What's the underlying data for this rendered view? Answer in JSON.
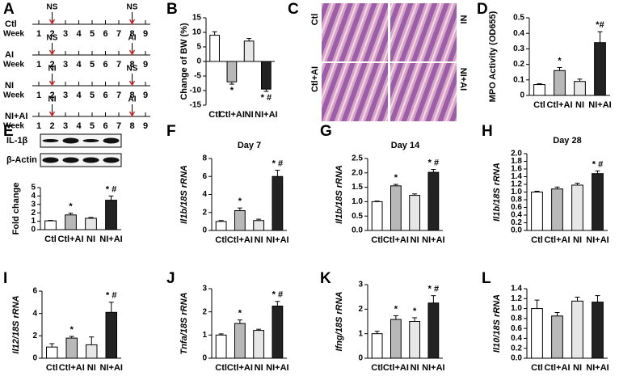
{
  "timeline": {
    "label": "A",
    "arrow_color": "#e02020",
    "rows": [
      {
        "group": "Ctl",
        "week_label": "Week",
        "weeks": [
          1,
          2,
          3,
          4,
          5,
          6,
          7,
          8,
          9
        ],
        "events": [
          {
            "text": "NS",
            "week": 2,
            "color": "#000000"
          },
          {
            "text": "NS",
            "week": 8,
            "color": "#000000"
          }
        ]
      },
      {
        "group": "AI",
        "week_label": "Week",
        "weeks": [
          1,
          2,
          3,
          4,
          5,
          6,
          7,
          8,
          9
        ],
        "events": [
          {
            "text": "NS",
            "week": 2,
            "color": "#000000"
          },
          {
            "text": "AI",
            "week": 8,
            "color": "#8e44ad"
          }
        ]
      },
      {
        "group": "NI",
        "week_label": "Week",
        "weeks": [
          1,
          2,
          3,
          4,
          5,
          6,
          7,
          8,
          9
        ],
        "events": [
          {
            "text": "NI",
            "week": 2,
            "color": "#1f4fd8"
          },
          {
            "text": "NS",
            "week": 8,
            "color": "#000000"
          }
        ]
      },
      {
        "group": "NI+AI",
        "week_label": "Week",
        "weeks": [
          1,
          2,
          3,
          4,
          5,
          6,
          7,
          8,
          9
        ],
        "events": [
          {
            "text": "NI",
            "week": 2,
            "color": "#1f4fd8"
          },
          {
            "text": "AI",
            "week": 8,
            "color": "#8e44ad"
          }
        ]
      }
    ]
  },
  "micrographs": {
    "label": "C",
    "tiles": [
      "Ctl",
      "NI",
      "Ctl+AI",
      "NI+AI"
    ]
  },
  "chart_data": [
    {
      "type": "bar",
      "label": "B",
      "y_label": "Change of BW (%)",
      "categories": [
        "Ctl",
        "Ctl+AI",
        "NI",
        "NI+AI"
      ],
      "values": [
        9,
        -7,
        7,
        -9.5
      ],
      "errors": [
        1.2,
        0.8,
        0.9,
        0.8
      ],
      "annotations": [
        null,
        "*",
        null,
        "* #"
      ],
      "colors": [
        "#ffffff",
        "#b8b8b8",
        "#e6e6e6",
        "#222222"
      ],
      "ylim": [
        -15,
        15
      ],
      "yticks": [
        -15,
        -10,
        -5,
        0,
        5,
        10,
        15
      ]
    },
    {
      "type": "bar",
      "label": "D",
      "y_label": "MPO Activity (OD655)",
      "categories": [
        "Ctl",
        "Ctl+AI",
        "NI",
        "NI+AI"
      ],
      "values": [
        0.07,
        0.16,
        0.09,
        0.34
      ],
      "errors": [
        0.005,
        0.02,
        0.015,
        0.07
      ],
      "annotations": [
        null,
        "*",
        null,
        "*#"
      ],
      "colors": [
        "#ffffff",
        "#b8b8b8",
        "#e6e6e6",
        "#222222"
      ],
      "ylim": [
        0,
        0.5
      ],
      "yticks": [
        0,
        0.1,
        0.2,
        0.3,
        0.4,
        0.5
      ]
    },
    {
      "type": "bar",
      "label": "E",
      "blot_labels": [
        "IL-1β",
        "β-Actin"
      ],
      "y_label": "Fold change",
      "categories": [
        "Ctl",
        "Ctl+AI",
        "NI",
        "NI+AI"
      ],
      "values": [
        1.05,
        1.75,
        1.35,
        3.5
      ],
      "errors": [
        0.05,
        0.2,
        0.1,
        0.5
      ],
      "annotations": [
        null,
        "*",
        null,
        "* #"
      ],
      "colors": [
        "#ffffff",
        "#b8b8b8",
        "#e6e6e6",
        "#222222"
      ],
      "ylim": [
        0,
        5
      ],
      "yticks": [
        0,
        1,
        2,
        3,
        4,
        5
      ]
    },
    {
      "type": "bar",
      "label": "F",
      "title": "Day 7",
      "y_label": "Il1b/18S rRNA",
      "categories": [
        "Ctl",
        "Ctl+AI",
        "NI",
        "NI+AI"
      ],
      "values": [
        1.0,
        2.2,
        1.1,
        6.0
      ],
      "errors": [
        0.1,
        0.3,
        0.15,
        0.7
      ],
      "annotations": [
        null,
        "*",
        null,
        "* #"
      ],
      "colors": [
        "#ffffff",
        "#b8b8b8",
        "#e6e6e6",
        "#222222"
      ],
      "ylim": [
        0,
        8
      ],
      "yticks": [
        0,
        2,
        4,
        6,
        8
      ]
    },
    {
      "type": "bar",
      "label": "G",
      "title": "Day 14",
      "y_label": "Il1b/18S rRNA",
      "categories": [
        "Ctl",
        "Ctl+AI",
        "NI",
        "NI+AI"
      ],
      "values": [
        1.0,
        1.55,
        1.22,
        2.02
      ],
      "errors": [
        0.02,
        0.05,
        0.05,
        0.1
      ],
      "annotations": [
        null,
        "*",
        null,
        "* #"
      ],
      "colors": [
        "#ffffff",
        "#b8b8b8",
        "#e6e6e6",
        "#222222"
      ],
      "ylim": [
        0,
        2.5
      ],
      "yticks": [
        {
          "value": 0,
          "label": "0.0"
        },
        0.5,
        {
          "value": 1,
          "label": "1.0"
        },
        1.5,
        {
          "value": 2,
          "label": "2.0"
        },
        2.5
      ]
    },
    {
      "type": "bar",
      "label": "H",
      "title": "Day 28",
      "y_label": "Il1b/18S rRNA",
      "categories": [
        "Ctl",
        "Ctl+AI",
        "NI",
        "NI+AI"
      ],
      "values": [
        1.0,
        1.08,
        1.18,
        1.48
      ],
      "errors": [
        0.02,
        0.05,
        0.05,
        0.07
      ],
      "annotations": [
        null,
        null,
        null,
        "* #"
      ],
      "colors": [
        "#ffffff",
        "#b8b8b8",
        "#e6e6e6",
        "#222222"
      ],
      "ylim": [
        0,
        2
      ],
      "yticks": [
        {
          "value": 0,
          "label": "0.0"
        },
        0.2,
        0.4,
        0.6,
        0.8,
        {
          "value": 1,
          "label": "1.0"
        },
        1.2,
        1.4,
        1.6,
        1.8,
        {
          "value": 2,
          "label": "2.0"
        }
      ]
    },
    {
      "type": "bar",
      "label": "I",
      "y_label": "Il12/18S rRNA",
      "categories": [
        "Ctl",
        "Ctl+AI",
        "NI",
        "NI+AI"
      ],
      "values": [
        1.0,
        1.8,
        1.2,
        4.1
      ],
      "errors": [
        0.3,
        0.15,
        0.7,
        0.9
      ],
      "annotations": [
        null,
        "*",
        null,
        "* #"
      ],
      "colors": [
        "#ffffff",
        "#b8b8b8",
        "#e6e6e6",
        "#222222"
      ],
      "ylim": [
        0,
        6
      ],
      "yticks": [
        0,
        2,
        4,
        6
      ]
    },
    {
      "type": "bar",
      "label": "J",
      "y_label": "Tnfa/18S rRNA",
      "categories": [
        "Ctl",
        "Ctl+AI",
        "NI",
        "NI+AI"
      ],
      "values": [
        1.0,
        1.5,
        1.2,
        2.25
      ],
      "errors": [
        0.05,
        0.15,
        0.05,
        0.2
      ],
      "annotations": [
        null,
        "*",
        null,
        "* #"
      ],
      "colors": [
        "#ffffff",
        "#b8b8b8",
        "#e6e6e6",
        "#222222"
      ],
      "ylim": [
        0,
        3
      ],
      "yticks": [
        0,
        1,
        2,
        3
      ]
    },
    {
      "type": "bar",
      "label": "K",
      "y_label": "Ifng/18S rRNA",
      "categories": [
        "Ctl",
        "Ctl+AI",
        "NI",
        "NI+AI"
      ],
      "values": [
        1.0,
        1.58,
        1.5,
        2.25
      ],
      "errors": [
        0.1,
        0.15,
        0.15,
        0.3
      ],
      "annotations": [
        null,
        "*",
        "*",
        "* #"
      ],
      "colors": [
        "#ffffff",
        "#b8b8b8",
        "#e6e6e6",
        "#222222"
      ],
      "ylim": [
        0,
        3
      ],
      "yticks": [
        0,
        1,
        2,
        3
      ]
    },
    {
      "type": "bar",
      "label": "L",
      "y_label": "Il10/18S rRNA",
      "categories": [
        "Ctl",
        "Ctl+AI",
        "NI",
        "NI+AI"
      ],
      "values": [
        1.0,
        0.85,
        1.15,
        1.13
      ],
      "errors": [
        0.17,
        0.07,
        0.08,
        0.13
      ],
      "annotations": [
        null,
        null,
        null,
        null
      ],
      "colors": [
        "#ffffff",
        "#b8b8b8",
        "#e6e6e6",
        "#222222"
      ],
      "ylim": [
        0,
        1.4
      ],
      "yticks": [
        {
          "value": 0,
          "label": "0.0"
        },
        0.2,
        0.4,
        0.6,
        0.8,
        {
          "value": 1,
          "label": "1.0"
        },
        1.2,
        1.4
      ]
    }
  ]
}
